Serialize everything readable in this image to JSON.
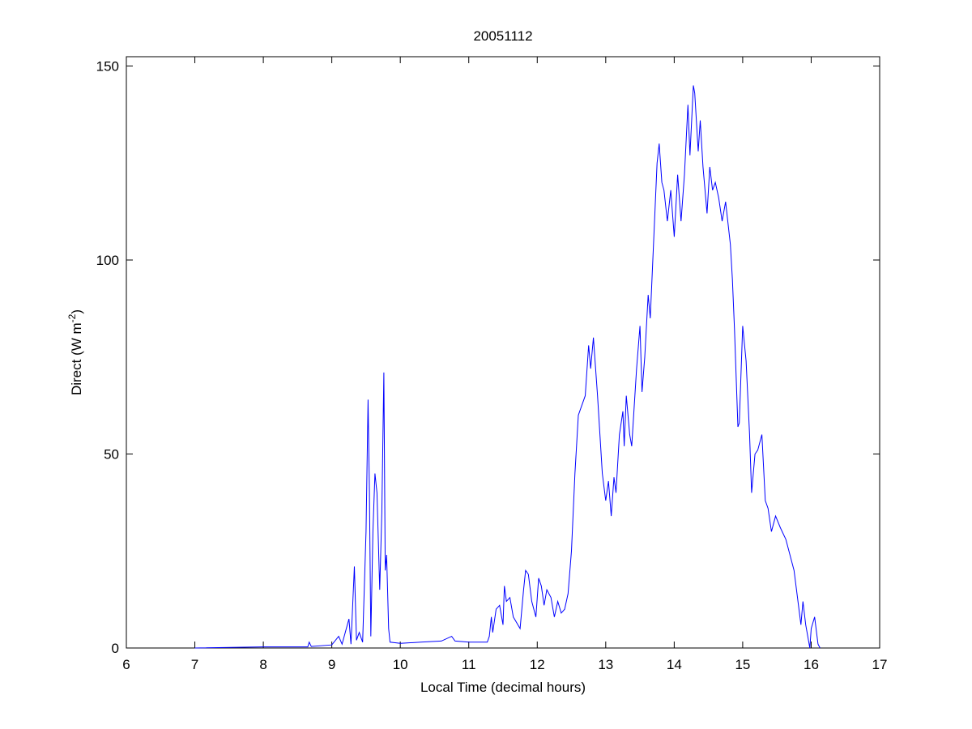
{
  "chart_data": {
    "type": "line",
    "title": "20051112",
    "xlabel": "Local Time (decimal hours)",
    "ylabel_main": "Direct (W m",
    "ylabel_sup": "-2",
    "ylabel_close": ")",
    "xlim": [
      6,
      17
    ],
    "ylim": [
      0,
      150
    ],
    "xticks": [
      6,
      7,
      8,
      9,
      10,
      11,
      12,
      13,
      14,
      15,
      16,
      17
    ],
    "yticks": [
      0,
      50,
      100,
      150
    ],
    "grid": false,
    "line_color": "#0000ff",
    "series": [
      {
        "x": [
          7.0,
          8.0,
          8.65,
          8.67,
          8.7,
          9.0,
          9.1,
          9.15,
          9.25,
          9.28,
          9.33,
          9.36,
          9.4,
          9.45,
          9.5,
          9.53,
          9.55,
          9.57,
          9.6,
          9.63,
          9.66,
          9.7,
          9.73,
          9.76,
          9.78,
          9.8,
          9.83,
          9.85,
          10.0,
          10.3,
          10.6,
          10.75,
          10.8,
          11.0,
          11.27,
          11.3,
          11.33,
          11.35,
          11.4,
          11.45,
          11.5,
          11.52,
          11.55,
          11.6,
          11.65,
          11.75,
          11.8,
          11.83,
          11.87,
          11.92,
          11.98,
          12.02,
          12.06,
          12.1,
          12.14,
          12.2,
          12.25,
          12.3,
          12.35,
          12.4,
          12.45,
          12.5,
          12.55,
          12.6,
          12.7,
          12.75,
          12.78,
          12.82,
          12.88,
          12.95,
          13.0,
          13.04,
          13.08,
          13.12,
          13.15,
          13.2,
          13.25,
          13.27,
          13.3,
          13.35,
          13.38,
          13.45,
          13.5,
          13.53,
          13.57,
          13.62,
          13.65,
          13.7,
          13.75,
          13.78,
          13.82,
          13.85,
          13.9,
          13.95,
          14.0,
          14.05,
          14.1,
          14.15,
          14.2,
          14.23,
          14.28,
          14.3,
          14.35,
          14.38,
          14.42,
          14.48,
          14.52,
          14.56,
          14.6,
          14.65,
          14.7,
          14.75,
          14.82,
          14.85,
          14.88,
          14.93,
          14.95,
          15.0,
          15.05,
          15.1,
          15.13,
          15.18,
          15.22,
          15.28,
          15.33,
          15.37,
          15.42,
          15.48,
          15.55,
          15.63,
          15.75,
          15.85,
          15.88,
          15.92,
          15.98,
          16.0,
          16.05,
          16.1,
          16.13
        ],
        "y": [
          0,
          0.3,
          0.3,
          1.5,
          0.4,
          0.8,
          3,
          1,
          7.5,
          1,
          21,
          2,
          4,
          1.5,
          30,
          64,
          40,
          3,
          30,
          45,
          40,
          15,
          35,
          71,
          20,
          24,
          5,
          1.5,
          1.2,
          1.5,
          1.8,
          3,
          1.8,
          1.5,
          1.5,
          3,
          8,
          4,
          10,
          11,
          6,
          16,
          12,
          13,
          8,
          5,
          15,
          20,
          19,
          12,
          8,
          18,
          16,
          11,
          15,
          13,
          8,
          12,
          9,
          10,
          14,
          25,
          45,
          60,
          65,
          78,
          72,
          80,
          65,
          45,
          38,
          43,
          34,
          44,
          40,
          55,
          61,
          52,
          65,
          55,
          52,
          72,
          83,
          66,
          75,
          91,
          85,
          105,
          125,
          130,
          120,
          118,
          110,
          118,
          106,
          122,
          110,
          122,
          140,
          127,
          145,
          143,
          128,
          136,
          124,
          112,
          124,
          118,
          120,
          116,
          110,
          115,
          104,
          95,
          82,
          57,
          58,
          83,
          74,
          55,
          40,
          50,
          51,
          55,
          38,
          36,
          30,
          34,
          31,
          28,
          20,
          6,
          12,
          6,
          0,
          5,
          8,
          1,
          0
        ]
      }
    ]
  }
}
